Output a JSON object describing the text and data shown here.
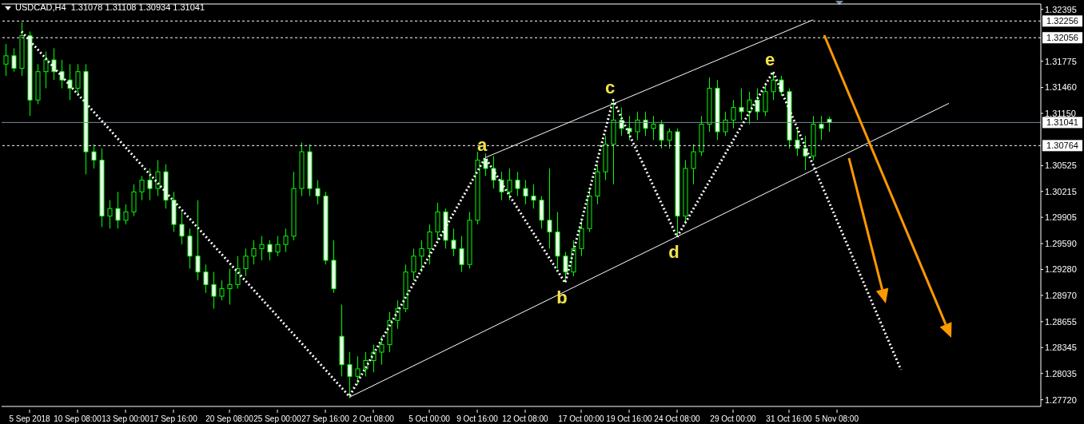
{
  "chart_data": {
    "type": "candlestick",
    "title": "USDCAD,H4  1.31078 1.31108 1.30934 1.31041",
    "color": "#00ff00",
    "categories": [
      null,
      null,
      null,
      "5 Sep 2018",
      null,
      null,
      null,
      null,
      null,
      "10 Sep 08:00",
      null,
      null,
      null,
      null,
      null,
      "13 Sep 00:00",
      null,
      null,
      null,
      null,
      null,
      "17 Sep 16:00",
      null,
      null,
      null,
      null,
      null,
      null,
      "20 Sep 08:00",
      null,
      null,
      null,
      null,
      null,
      "25 Sep 00:00",
      null,
      null,
      null,
      null,
      null,
      "27 Sep 16:00",
      null,
      null,
      null,
      null,
      null,
      "2 Oct 08:00",
      null,
      null,
      null,
      null,
      null,
      null,
      "5 Oct 00:00",
      null,
      null,
      null,
      null,
      null,
      "9 Oct 16:00",
      null,
      null,
      null,
      null,
      null,
      "12 Oct 08:00",
      null,
      null,
      null,
      null,
      null,
      null,
      "17 Oct 00:00",
      null,
      null,
      null,
      null,
      null,
      "19 Oct 16:00",
      null,
      null,
      null,
      null,
      null,
      "24 Oct 08:00",
      null,
      null,
      null,
      null,
      null,
      null,
      "29 Oct 00:00",
      null,
      null,
      null,
      null,
      null,
      null,
      "31 Oct 16:00",
      null,
      null,
      null,
      null,
      null,
      "5 Nov 08:00",
      null,
      null,
      null,
      null,
      null,
      null,
      null,
      null,
      null,
      null,
      null,
      null,
      null,
      null,
      null,
      null,
      null,
      null,
      null,
      null,
      null,
      null,
      null,
      null,
      null
    ],
    "ohlc": [
      [
        1.3174,
        1.3198,
        1.316,
        1.3184
      ],
      [
        1.3184,
        1.3193,
        1.3165,
        1.3169
      ],
      [
        1.3169,
        1.3224,
        1.316,
        1.3208
      ],
      [
        1.3208,
        1.3213,
        1.3112,
        1.3131
      ],
      [
        1.3131,
        1.3174,
        1.3126,
        1.3165
      ],
      [
        1.3165,
        1.3189,
        1.3145,
        1.3179
      ],
      [
        1.3179,
        1.3193,
        1.3155,
        1.3165
      ],
      [
        1.3165,
        1.3179,
        1.3145,
        1.3155
      ],
      [
        1.3155,
        1.3174,
        1.3131,
        1.3145
      ],
      [
        1.3145,
        1.3174,
        1.3136,
        1.3165
      ],
      [
        1.3165,
        1.3174,
        1.3042,
        1.3069
      ],
      [
        1.3069,
        1.3078,
        1.3049,
        1.3059
      ],
      [
        1.3059,
        1.3073,
        1.2979,
        1.2992
      ],
      [
        1.2992,
        1.3011,
        1.2977,
        1.3001
      ],
      [
        1.3001,
        1.3021,
        1.2977,
        1.2987
      ],
      [
        1.2987,
        1.3006,
        1.2982,
        1.2997
      ],
      [
        1.2997,
        1.303,
        1.2992,
        1.3021
      ],
      [
        1.3021,
        1.304,
        1.3011,
        1.3035
      ],
      [
        1.3035,
        1.3049,
        1.3011,
        1.3025
      ],
      [
        1.3025,
        1.3059,
        1.3016,
        1.3045
      ],
      [
        1.3045,
        1.3054,
        1.3001,
        1.3011
      ],
      [
        1.3011,
        1.3021,
        1.2973,
        1.2982
      ],
      [
        1.2982,
        1.2997,
        1.2958,
        1.2968
      ],
      [
        1.2968,
        1.2977,
        1.2929,
        1.2944
      ],
      [
        1.2944,
        1.3011,
        1.2915,
        1.2925
      ],
      [
        1.2925,
        1.2934,
        1.29,
        1.291
      ],
      [
        1.291,
        1.2925,
        1.2881,
        1.2896
      ],
      [
        1.2896,
        1.2915,
        1.2891,
        1.2905
      ],
      [
        1.2905,
        1.2929,
        1.2886,
        1.291
      ],
      [
        1.291,
        1.2944,
        1.2905,
        1.2929
      ],
      [
        1.2929,
        1.2953,
        1.292,
        1.2944
      ],
      [
        1.2944,
        1.2963,
        1.2934,
        1.2953
      ],
      [
        1.2953,
        1.2968,
        1.2939,
        1.2958
      ],
      [
        1.2958,
        1.2963,
        1.2939,
        1.2949
      ],
      [
        1.2949,
        1.2968,
        1.2944,
        1.2958
      ],
      [
        1.2958,
        1.2977,
        1.2949,
        1.2968
      ],
      [
        1.2968,
        1.3045,
        1.2963,
        1.3025
      ],
      [
        1.3025,
        1.308,
        1.3016,
        1.3069
      ],
      [
        1.3069,
        1.3078,
        1.3016,
        1.3025
      ],
      [
        1.3025,
        1.3035,
        1.3006,
        1.3016
      ],
      [
        1.3016,
        1.3021,
        1.2934,
        1.2939
      ],
      [
        1.2939,
        1.2963,
        1.29,
        1.2905
      ],
      [
        1.2848,
        1.2886,
        1.28,
        1.2814
      ],
      [
        1.2814,
        1.2829,
        1.2774,
        1.28
      ],
      [
        1.28,
        1.2824,
        1.279,
        1.2809
      ],
      [
        1.2809,
        1.2829,
        1.28,
        1.2819
      ],
      [
        1.2819,
        1.2838,
        1.2805,
        1.2829
      ],
      [
        1.2829,
        1.2848,
        1.2814,
        1.2838
      ],
      [
        1.2838,
        1.2877,
        1.2829,
        1.2867
      ],
      [
        1.2867,
        1.2891,
        1.2857,
        1.2881
      ],
      [
        1.2881,
        1.2934,
        1.2877,
        1.2925
      ],
      [
        1.2925,
        1.2953,
        1.2915,
        1.2944
      ],
      [
        1.2944,
        1.2963,
        1.2925,
        1.2953
      ],
      [
        1.2953,
        1.2982,
        1.2934,
        1.2973
      ],
      [
        1.2973,
        1.3008,
        1.2963,
        1.2997
      ],
      [
        1.2997,
        1.3001,
        1.2953,
        1.2963
      ],
      [
        1.2963,
        1.2977,
        1.2944,
        1.2953
      ],
      [
        1.2953,
        1.2968,
        1.2925,
        1.2934
      ],
      [
        1.2934,
        1.2997,
        1.2929,
        1.2987
      ],
      [
        1.2987,
        1.3069,
        1.2982,
        1.3059
      ],
      [
        1.3059,
        1.3067,
        1.304,
        1.3049
      ],
      [
        1.3049,
        1.3064,
        1.3025,
        1.3035
      ],
      [
        1.3035,
        1.3045,
        1.3011,
        1.3021
      ],
      [
        1.3021,
        1.3049,
        1.3011,
        1.3035
      ],
      [
        1.3035,
        1.3045,
        1.3016,
        1.3025
      ],
      [
        1.3025,
        1.3035,
        1.3006,
        1.3016
      ],
      [
        1.3016,
        1.303,
        1.3001,
        1.3011
      ],
      [
        1.3011,
        1.3016,
        1.2977,
        1.2987
      ],
      [
        1.2987,
        1.3049,
        1.2953,
        1.2973
      ],
      [
        1.2973,
        1.2997,
        1.2929,
        1.2944
      ],
      [
        1.2944,
        1.2949,
        1.2912,
        1.2925
      ],
      [
        1.2925,
        1.2963,
        1.292,
        1.2953
      ],
      [
        1.2953,
        1.2987,
        1.2944,
        1.2977
      ],
      [
        1.2977,
        1.3025,
        1.2973,
        1.3016
      ],
      [
        1.3016,
        1.3054,
        1.3006,
        1.3045
      ],
      [
        1.3045,
        1.3088,
        1.3035,
        1.3078
      ],
      [
        1.3078,
        1.3131,
        1.303,
        1.3107
      ],
      [
        1.3107,
        1.3122,
        1.3088,
        1.3097
      ],
      [
        1.3097,
        1.3112,
        1.3083,
        1.3093
      ],
      [
        1.3093,
        1.3117,
        1.3083,
        1.3107
      ],
      [
        1.3107,
        1.3117,
        1.3088,
        1.3097
      ],
      [
        1.3097,
        1.3112,
        1.3083,
        1.3102
      ],
      [
        1.3102,
        1.3107,
        1.3073,
        1.3083
      ],
      [
        1.3083,
        1.3097,
        1.3073,
        1.3093
      ],
      [
        1.3093,
        1.3097,
        1.2967,
        1.2992
      ],
      [
        1.2992,
        1.3059,
        1.2982,
        1.3049
      ],
      [
        1.3049,
        1.3078,
        1.303,
        1.3069
      ],
      [
        1.3069,
        1.3112,
        1.3064,
        1.3102
      ],
      [
        1.3102,
        1.3158,
        1.3093,
        1.3145
      ],
      [
        1.3145,
        1.3155,
        1.3083,
        1.3093
      ],
      [
        1.3093,
        1.3117,
        1.3088,
        1.3107
      ],
      [
        1.3107,
        1.3131,
        1.3097,
        1.3122
      ],
      [
        1.3122,
        1.3145,
        1.3107,
        1.3117
      ],
      [
        1.3117,
        1.3141,
        1.3102,
        1.3131
      ],
      [
        1.3131,
        1.3145,
        1.3107,
        1.3117
      ],
      [
        1.3117,
        1.315,
        1.3112,
        1.3141
      ],
      [
        1.3141,
        1.3165,
        1.3131,
        1.3155
      ],
      [
        1.3155,
        1.316,
        1.3136,
        1.3141
      ],
      [
        1.3141,
        1.3145,
        1.3073,
        1.3083
      ],
      [
        1.3083,
        1.3097,
        1.3064,
        1.3073
      ],
      [
        1.3073,
        1.3088,
        1.3047,
        1.3064
      ],
      [
        1.3064,
        1.3112,
        1.3059,
        1.3102
      ],
      [
        1.3102,
        1.3112,
        1.3083,
        1.3097
      ],
      [
        1.3108,
        1.3111,
        1.3093,
        1.3104
      ],
      null,
      null,
      null,
      null,
      null,
      null,
      null,
      null,
      null,
      null,
      null,
      null,
      null,
      null,
      null,
      null,
      null,
      null,
      null,
      null,
      null,
      null,
      null,
      null,
      null,
      null
    ],
    "series": [
      {
        "type": "line",
        "color": "#ffffff",
        "line_style": "dotted",
        "values": [
          null,
          null,
          1.3213,
          null,
          null,
          null,
          null,
          null,
          null,
          null,
          null,
          null,
          null,
          null,
          null,
          null,
          null,
          null,
          null,
          null,
          null,
          null,
          null,
          null,
          null,
          null,
          null,
          null,
          null,
          null,
          null,
          null,
          null,
          null,
          null,
          null,
          null,
          null,
          null,
          null,
          null,
          null,
          null,
          1.2776,
          null,
          null,
          null,
          null,
          null,
          null,
          null,
          null,
          null,
          null,
          null,
          null,
          null,
          null,
          null,
          null,
          1.3062,
          null,
          null,
          null,
          null,
          null,
          null,
          null,
          null,
          null,
          1.2912,
          null,
          null,
          null,
          null,
          null,
          1.3131,
          null,
          null,
          null,
          null,
          null,
          null,
          null,
          1.2967,
          null,
          null,
          null,
          null,
          null,
          null,
          null,
          null,
          null,
          null,
          null,
          1.3165,
          null,
          null,
          null,
          null,
          null,
          null,
          null,
          null,
          null,
          null,
          null,
          null,
          null,
          null,
          null,
          1.2808,
          null,
          null,
          null,
          null,
          null,
          null,
          null,
          null,
          null,
          null,
          null,
          null,
          null,
          null,
          null,
          null,
          null
        ],
        "value_labels": [
          null,
          null,
          null,
          null,
          null,
          null,
          null,
          null,
          null,
          null,
          null,
          null,
          null,
          null,
          null,
          null,
          null,
          null,
          null,
          null,
          null,
          null,
          null,
          null,
          null,
          null,
          null,
          null,
          null,
          null,
          null,
          null,
          null,
          null,
          null,
          null,
          null,
          null,
          null,
          null,
          null,
          null,
          null,
          null,
          null,
          null,
          null,
          null,
          null,
          null,
          null,
          null,
          null,
          null,
          null,
          null,
          null,
          null,
          null,
          null,
          "a",
          null,
          null,
          null,
          null,
          null,
          null,
          null,
          null,
          null,
          "b",
          null,
          null,
          null,
          null,
          null,
          "c",
          null,
          null,
          null,
          null,
          null,
          null,
          null,
          "d",
          null,
          null,
          null,
          null,
          null,
          null,
          null,
          null,
          null,
          null,
          null,
          "e",
          null,
          null,
          null,
          null,
          null,
          null,
          null,
          null,
          null,
          null,
          null,
          null,
          null,
          null,
          null,
          null,
          null,
          null,
          null,
          null,
          null,
          null,
          null,
          null,
          null,
          null,
          null,
          null,
          null,
          null,
          null,
          null,
          null
        ]
      },
      {
        "type": "line",
        "color": "#ffffff",
        "line_style": "solid",
        "values": [
          null,
          null,
          null,
          null,
          null,
          null,
          null,
          null,
          null,
          null,
          null,
          null,
          null,
          null,
          null,
          null,
          null,
          null,
          null,
          null,
          null,
          null,
          null,
          null,
          null,
          null,
          null,
          null,
          null,
          null,
          null,
          null,
          null,
          null,
          null,
          null,
          null,
          null,
          null,
          null,
          null,
          null,
          null,
          null,
          null,
          null,
          null,
          null,
          null,
          null,
          null,
          null,
          null,
          null,
          null,
          null,
          null,
          null,
          null,
          null,
          1.3062,
          null,
          null,
          null,
          null,
          null,
          null,
          null,
          null,
          null,
          null,
          null,
          null,
          null,
          null,
          null,
          null,
          null,
          null,
          null,
          null,
          null,
          null,
          null,
          null,
          null,
          null,
          null,
          null,
          null,
          null,
          null,
          null,
          null,
          null,
          null,
          null,
          null,
          null,
          null,
          null,
          1.3227,
          null,
          null,
          null,
          null,
          null,
          null,
          null,
          null,
          null,
          null,
          null,
          null,
          null,
          null,
          null,
          null,
          null,
          null,
          null,
          null,
          null,
          null,
          null,
          null,
          null,
          null,
          null,
          null
        ]
      },
      {
        "type": "line",
        "color": "#ffffff",
        "line_style": "solid",
        "values": [
          null,
          null,
          null,
          null,
          null,
          null,
          null,
          null,
          null,
          null,
          null,
          null,
          null,
          null,
          null,
          null,
          null,
          null,
          null,
          null,
          null,
          null,
          null,
          null,
          null,
          null,
          null,
          null,
          null,
          null,
          null,
          null,
          null,
          null,
          null,
          null,
          null,
          null,
          null,
          null,
          null,
          null,
          null,
          1.2775,
          null,
          null,
          null,
          null,
          null,
          null,
          null,
          null,
          null,
          null,
          null,
          null,
          null,
          null,
          null,
          null,
          null,
          null,
          null,
          null,
          null,
          null,
          null,
          null,
          null,
          null,
          null,
          null,
          null,
          null,
          null,
          null,
          null,
          null,
          null,
          null,
          null,
          null,
          null,
          null,
          null,
          null,
          null,
          null,
          null,
          null,
          null,
          null,
          null,
          null,
          null,
          null,
          null,
          null,
          null,
          null,
          null,
          null,
          null,
          null,
          null,
          null,
          null,
          null,
          null,
          null,
          null,
          null,
          null,
          null,
          null,
          null,
          null,
          null,
          1.3127,
          null,
          null,
          null,
          null,
          null,
          null,
          null,
          null,
          null,
          null,
          null
        ]
      }
    ],
    "ref_lines": [
      {
        "axis": "y",
        "value": 1.32256,
        "label": "1.32256",
        "color": "#ffffff",
        "line_style": "dashed"
      },
      {
        "axis": "y",
        "value": 1.32056,
        "label": "1.32056",
        "color": "#ffffff",
        "line_style": "dashed"
      },
      {
        "axis": "y",
        "value": 1.31041,
        "label": "1.31041",
        "color": "#778899",
        "line_style": "solid"
      },
      {
        "axis": "y",
        "value": 1.30764,
        "label": "1.30764",
        "color": "#ffffff",
        "line_style": "dashed"
      }
    ],
    "ylim": [
      1.2764,
      1.3246
    ],
    "yticks": [
      1.32395,
      1.31775,
      {
        "value": 1.3146,
        "label": "1.31460"
      },
      {
        "value": 1.3115,
        "label": "1.31150"
      },
      1.30525,
      1.30215,
      1.29905,
      {
        "value": 1.2959,
        "label": "1.29590"
      },
      {
        "value": 1.2928,
        "label": "1.29280"
      },
      {
        "value": 1.2897,
        "label": "1.28970"
      },
      1.28655,
      1.28345,
      1.28035,
      {
        "value": 1.2772,
        "label": "1.27720"
      }
    ],
    "grid": false
  }
}
